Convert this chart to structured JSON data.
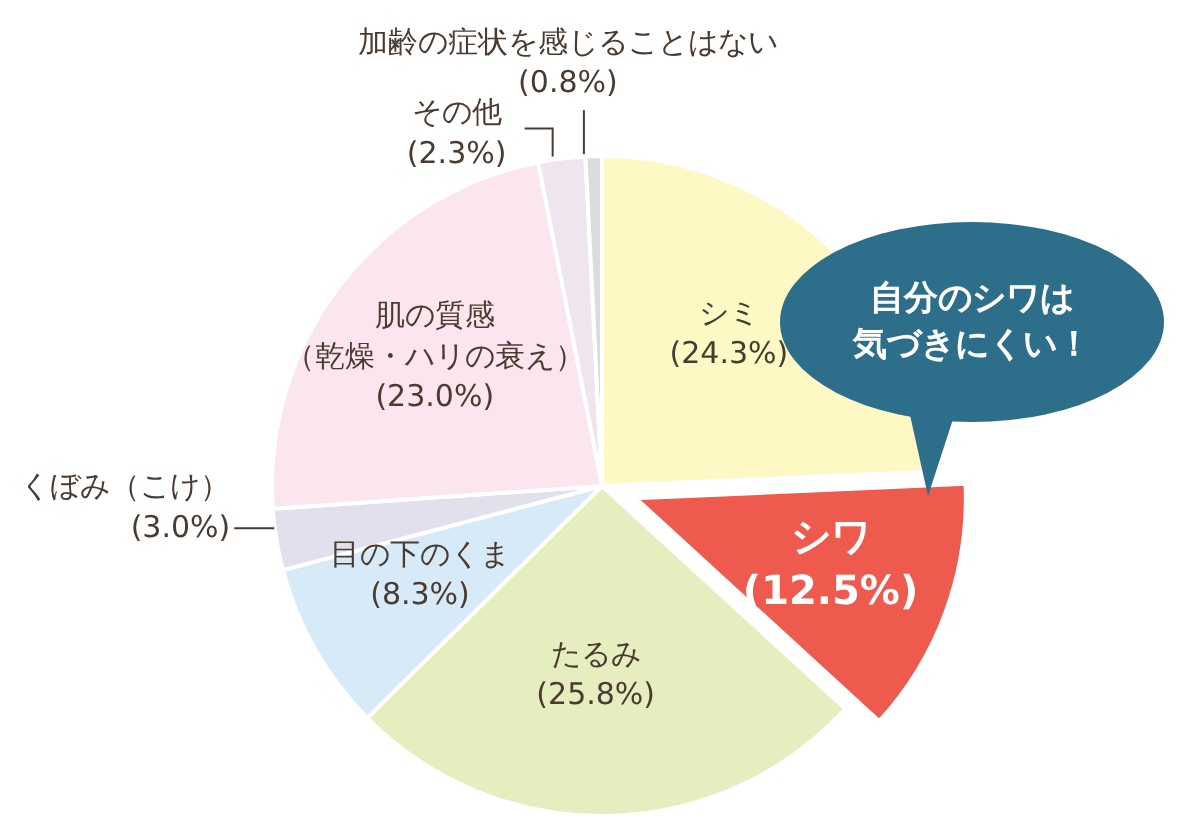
{
  "chart_data": {
    "type": "pie",
    "categories": [
      "シミ",
      "シワ",
      "たるみ",
      "目の下のくま",
      "くぼみ（こけ）",
      "肌の質感（乾燥・ハリの衰え）",
      "その他",
      "加齢の症状を感じることはない"
    ],
    "values": [
      24.3,
      12.5,
      25.8,
      8.3,
      3.0,
      23.0,
      2.3,
      0.8
    ],
    "value_labels": [
      "(24.3%)",
      "(12.5%)",
      "(25.8%)",
      "(8.3%)",
      "(3.0%)",
      "(23.0%)",
      "(2.3%)",
      "(0.8%)"
    ],
    "colors": [
      "#fdf8c4",
      "#ef5a4e",
      "#e6edbe",
      "#d6eaf7",
      "#e3e0ee",
      "#fbe5ee",
      "#eee5ef",
      "#dcdcdc"
    ],
    "annotations": [
      {
        "text": "自分のシワは気づきにくい！",
        "x": "シワ"
      }
    ],
    "legend": false
  }
}
